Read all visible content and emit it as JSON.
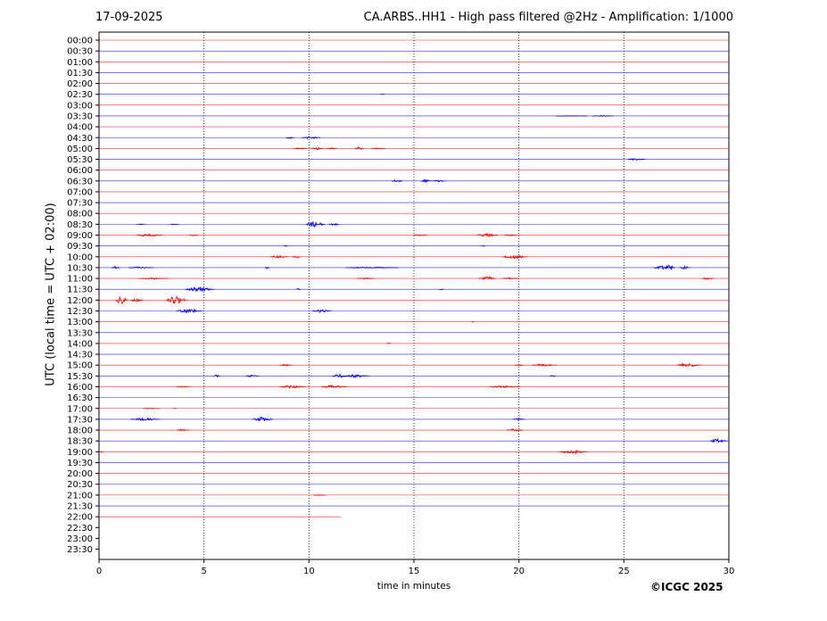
{
  "header": {
    "date": "17-09-2025",
    "title": "CA.ARBS..HH1 - High pass filtered @2Hz - Amplification: 1/1000"
  },
  "footer": {
    "copyright": "©ICGC 2025"
  },
  "colors": {
    "red": "#ff0000",
    "blue": "#0000ff"
  },
  "chart_data": {
    "type": "line",
    "chart_kind": "helicorder",
    "xlabel": "time in minutes",
    "ylabel": "UTC (local time = UTC + 02:00)",
    "xlim": [
      0,
      30
    ],
    "x_ticks": [
      0,
      5,
      10,
      15,
      20,
      25,
      30
    ],
    "grid": "vertical dotted lines at 5-minute ticks",
    "rows": [
      "00:00",
      "00:30",
      "01:00",
      "01:30",
      "02:00",
      "02:30",
      "03:00",
      "03:30",
      "04:00",
      "04:30",
      "05:00",
      "05:30",
      "06:00",
      "06:30",
      "07:00",
      "07:30",
      "08:00",
      "08:30",
      "09:00",
      "09:30",
      "10:00",
      "10:30",
      "11:00",
      "11:30",
      "12:00",
      "12:30",
      "13:00",
      "13:30",
      "14:00",
      "14:30",
      "15:00",
      "15:30",
      "16:00",
      "16:30",
      "17:00",
      "17:30",
      "18:00",
      "18:30",
      "19:00",
      "19:30",
      "20:00",
      "20:30",
      "21:00",
      "21:30",
      "22:00",
      "22:30",
      "23:00",
      "23:30"
    ],
    "row_colors": "alternating red / blue starting with red at 00:00",
    "data_end": {
      "row": "22:00",
      "minute": 11.5
    },
    "events": [
      {
        "row": "02:30",
        "minute": 13.5,
        "amp": 0.3,
        "dur": 0.2
      },
      {
        "row": "03:30",
        "minute": 22.5,
        "amp": 0.5,
        "dur": 1.5
      },
      {
        "row": "03:30",
        "minute": 24.0,
        "amp": 0.8,
        "dur": 1.0
      },
      {
        "row": "04:30",
        "minute": 9.1,
        "amp": 1.5,
        "dur": 0.4
      },
      {
        "row": "04:30",
        "minute": 10.1,
        "amp": 1.8,
        "dur": 0.9
      },
      {
        "row": "05:00",
        "minute": 9.6,
        "amp": 1.0,
        "dur": 0.6
      },
      {
        "row": "05:00",
        "minute": 10.4,
        "amp": 2.0,
        "dur": 0.6
      },
      {
        "row": "05:00",
        "minute": 11.1,
        "amp": 1.0,
        "dur": 0.5
      },
      {
        "row": "05:00",
        "minute": 12.4,
        "amp": 2.5,
        "dur": 0.4
      },
      {
        "row": "05:00",
        "minute": 13.3,
        "amp": 0.8,
        "dur": 0.6
      },
      {
        "row": "05:30",
        "minute": 25.6,
        "amp": 1.5,
        "dur": 0.8
      },
      {
        "row": "06:30",
        "minute": 14.2,
        "amp": 2.0,
        "dur": 0.5
      },
      {
        "row": "06:30",
        "minute": 15.6,
        "amp": 2.2,
        "dur": 0.5
      },
      {
        "row": "06:30",
        "minute": 16.2,
        "amp": 1.2,
        "dur": 0.6
      },
      {
        "row": "08:30",
        "minute": 2.0,
        "amp": 0.6,
        "dur": 0.4
      },
      {
        "row": "08:30",
        "minute": 3.6,
        "amp": 0.6,
        "dur": 0.4
      },
      {
        "row": "08:30",
        "minute": 10.3,
        "amp": 4.0,
        "dur": 0.9
      },
      {
        "row": "08:30",
        "minute": 11.2,
        "amp": 1.5,
        "dur": 0.5
      },
      {
        "row": "09:00",
        "minute": 2.4,
        "amp": 2.0,
        "dur": 1.2
      },
      {
        "row": "09:00",
        "minute": 4.5,
        "amp": 0.8,
        "dur": 0.4
      },
      {
        "row": "09:00",
        "minute": 15.3,
        "amp": 1.0,
        "dur": 0.6
      },
      {
        "row": "09:00",
        "minute": 18.5,
        "amp": 2.5,
        "dur": 1.0
      },
      {
        "row": "09:00",
        "minute": 19.6,
        "amp": 1.0,
        "dur": 0.6
      },
      {
        "row": "09:30",
        "minute": 8.9,
        "amp": 1.0,
        "dur": 0.2
      },
      {
        "row": "09:30",
        "minute": 18.3,
        "amp": 1.0,
        "dur": 0.2
      },
      {
        "row": "10:00",
        "minute": 8.6,
        "amp": 2.0,
        "dur": 0.9
      },
      {
        "row": "10:00",
        "minute": 9.4,
        "amp": 2.0,
        "dur": 0.4
      },
      {
        "row": "10:00",
        "minute": 19.8,
        "amp": 2.5,
        "dur": 1.2
      },
      {
        "row": "10:30",
        "minute": 0.8,
        "amp": 2.0,
        "dur": 0.4
      },
      {
        "row": "10:30",
        "minute": 2.0,
        "amp": 1.0,
        "dur": 1.2
      },
      {
        "row": "10:30",
        "minute": 8.0,
        "amp": 1.2,
        "dur": 0.2
      },
      {
        "row": "10:30",
        "minute": 13.0,
        "amp": 1.0,
        "dur": 2.5
      },
      {
        "row": "10:30",
        "minute": 26.8,
        "amp": 2.5,
        "dur": 0.8
      },
      {
        "row": "10:30",
        "minute": 27.2,
        "amp": 4.0,
        "dur": 0.5
      },
      {
        "row": "10:30",
        "minute": 27.9,
        "amp": 2.0,
        "dur": 0.5
      },
      {
        "row": "11:00",
        "minute": 2.6,
        "amp": 1.2,
        "dur": 1.4
      },
      {
        "row": "11:00",
        "minute": 12.7,
        "amp": 1.0,
        "dur": 0.8
      },
      {
        "row": "11:00",
        "minute": 18.5,
        "amp": 2.5,
        "dur": 0.8
      },
      {
        "row": "11:00",
        "minute": 19.6,
        "amp": 1.0,
        "dur": 0.8
      },
      {
        "row": "11:00",
        "minute": 29.0,
        "amp": 1.5,
        "dur": 0.6
      },
      {
        "row": "11:30",
        "minute": 4.8,
        "amp": 3.0,
        "dur": 1.4
      },
      {
        "row": "11:30",
        "minute": 9.5,
        "amp": 1.5,
        "dur": 0.2
      },
      {
        "row": "11:30",
        "minute": 16.3,
        "amp": 1.0,
        "dur": 0.2
      },
      {
        "row": "12:00",
        "minute": 1.1,
        "amp": 5.5,
        "dur": 0.6
      },
      {
        "row": "12:00",
        "minute": 1.8,
        "amp": 2.5,
        "dur": 0.6
      },
      {
        "row": "12:00",
        "minute": 3.7,
        "amp": 5.0,
        "dur": 1.0
      },
      {
        "row": "12:30",
        "minute": 4.3,
        "amp": 2.5,
        "dur": 1.2
      },
      {
        "row": "12:30",
        "minute": 10.6,
        "amp": 2.0,
        "dur": 0.9
      },
      {
        "row": "13:00",
        "minute": 17.8,
        "amp": 1.0,
        "dur": 0.1
      },
      {
        "row": "14:00",
        "minute": 13.8,
        "amp": 0.6,
        "dur": 0.2
      },
      {
        "row": "15:00",
        "minute": 8.9,
        "amp": 1.5,
        "dur": 0.6
      },
      {
        "row": "15:00",
        "minute": 20.0,
        "amp": 1.0,
        "dur": 0.4
      },
      {
        "row": "15:00",
        "minute": 21.2,
        "amp": 1.5,
        "dur": 1.2
      },
      {
        "row": "15:00",
        "minute": 28.1,
        "amp": 2.5,
        "dur": 1.2
      },
      {
        "row": "15:30",
        "minute": 5.6,
        "amp": 2.0,
        "dur": 0.3
      },
      {
        "row": "15:30",
        "minute": 7.3,
        "amp": 1.5,
        "dur": 0.6
      },
      {
        "row": "15:30",
        "minute": 11.5,
        "amp": 2.5,
        "dur": 0.8
      },
      {
        "row": "15:30",
        "minute": 12.3,
        "amp": 2.2,
        "dur": 1.1
      },
      {
        "row": "15:30",
        "minute": 21.6,
        "amp": 0.8,
        "dur": 0.3
      },
      {
        "row": "16:00",
        "minute": 9.2,
        "amp": 2.0,
        "dur": 1.2
      },
      {
        "row": "16:00",
        "minute": 11.2,
        "amp": 2.0,
        "dur": 1.2
      },
      {
        "row": "16:00",
        "minute": 19.3,
        "amp": 1.5,
        "dur": 1.4
      },
      {
        "row": "16:00",
        "minute": 4.0,
        "amp": 0.6,
        "dur": 0.6
      },
      {
        "row": "17:00",
        "minute": 2.5,
        "amp": 0.8,
        "dur": 0.8
      },
      {
        "row": "17:00",
        "minute": 3.6,
        "amp": 0.6,
        "dur": 0.2
      },
      {
        "row": "17:30",
        "minute": 2.2,
        "amp": 1.8,
        "dur": 1.4
      },
      {
        "row": "17:30",
        "minute": 7.8,
        "amp": 3.0,
        "dur": 1.0
      },
      {
        "row": "17:30",
        "minute": 20.0,
        "amp": 1.0,
        "dur": 0.6
      },
      {
        "row": "18:00",
        "minute": 4.0,
        "amp": 1.2,
        "dur": 0.6
      },
      {
        "row": "18:00",
        "minute": 19.8,
        "amp": 1.8,
        "dur": 0.8
      },
      {
        "row": "18:30",
        "minute": 29.5,
        "amp": 3.0,
        "dur": 0.8
      },
      {
        "row": "19:00",
        "minute": 0.1,
        "amp": 0.8,
        "dur": 0.2
      },
      {
        "row": "19:00",
        "minute": 22.6,
        "amp": 2.5,
        "dur": 1.4
      },
      {
        "row": "21:00",
        "minute": 10.5,
        "amp": 0.6,
        "dur": 0.6
      }
    ]
  }
}
